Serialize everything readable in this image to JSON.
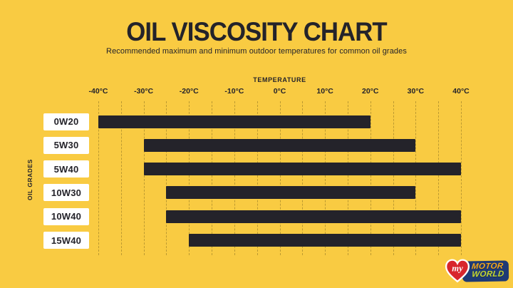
{
  "header": {
    "title": "OIL VISCOSITY CHART",
    "subtitle": "Recommended maximum and minimum outdoor temperatures for common oil grades"
  },
  "chart_data": {
    "type": "bar",
    "orientation": "horizontal-range",
    "title": "OIL VISCOSITY CHART",
    "xlabel": "TEMPERATURE",
    "ylabel": "OIL GRADES",
    "x_unit": "°C",
    "xlim": [
      -40,
      40
    ],
    "grid": "dashed-vertical",
    "grid_step": 5,
    "x_major_ticks": [
      -40,
      -30,
      -20,
      -10,
      0,
      10,
      20,
      30,
      40
    ],
    "x_tick_labels": [
      "-40°C",
      "-30°C",
      "-20°C",
      "-10°C",
      "0°C",
      "10°C",
      "20°C",
      "30°C",
      "40°C"
    ],
    "categories": [
      "0W20",
      "5W30",
      "5W40",
      "10W30",
      "10W40",
      "15W40"
    ],
    "bars": [
      {
        "category": "0W20",
        "min": -40,
        "max": 20
      },
      {
        "category": "5W30",
        "min": -30,
        "max": 30
      },
      {
        "category": "5W40",
        "min": -30,
        "max": 40
      },
      {
        "category": "10W30",
        "min": -25,
        "max": 30
      },
      {
        "category": "10W40",
        "min": -25,
        "max": 40
      },
      {
        "category": "15W40",
        "min": -20,
        "max": 40
      }
    ]
  },
  "logo": {
    "prefix": "my",
    "line1": "MOTOR",
    "line2": "WORLD"
  },
  "colors": {
    "background": "#F9CB42",
    "bar": "#24232A",
    "grid": "#B2922F",
    "label_box": "#FFFFFF",
    "text": "#24232A",
    "logo_heart": "#D8262C",
    "logo_box": "#1E3A75",
    "logo_motor": "#F5A81C",
    "logo_world": "#C6D831",
    "logo_my": "#FFFFFF"
  }
}
